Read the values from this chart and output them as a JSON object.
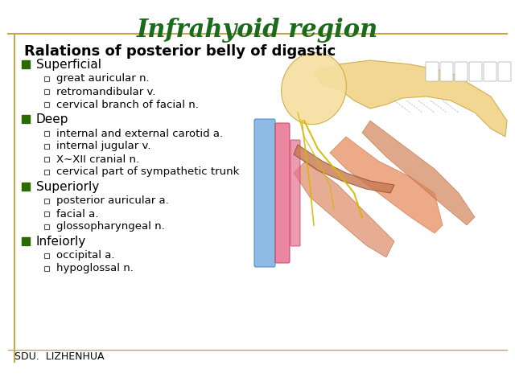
{
  "title": "Infrahyoid region",
  "title_color": "#1a6b1a",
  "title_fontsize": 22,
  "subtitle": "Ralations of posterior belly of digastic",
  "subtitle_fontsize": 13,
  "background_color": "#ffffff",
  "border_color": "#c8a84b",
  "sdu_text": "SDU.  LIZHENHUA",
  "sections": [
    {
      "label": "Superficial",
      "bullet_color": "#2b6a00",
      "items": [
        "great auricular n.",
        "retromandibular v.",
        "cervical branch of facial n."
      ]
    },
    {
      "label": "Deep",
      "bullet_color": "#2b6a00",
      "items": [
        "internal and external carotid a.",
        "internal jugular v.",
        "X∼XII cranial n.",
        "cervical part of sympathetic trunk"
      ]
    },
    {
      "label": "Superiorly",
      "bullet_color": "#2b6a00",
      "items": [
        "posterior auricular a.",
        "facial a.",
        "glossopharyngeal n."
      ]
    },
    {
      "label": "Infeiorly",
      "bullet_color": "#2b6a00",
      "items": [
        "occipital a.",
        "hypoglossal n."
      ]
    }
  ]
}
